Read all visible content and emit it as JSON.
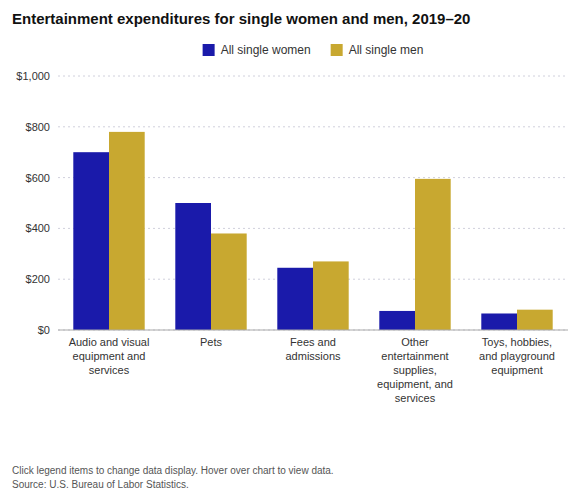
{
  "chart_data": {
    "type": "bar",
    "title": "Entertainment expenditures for single women and men, 2019–20",
    "categories": [
      "Audio and visual\nequipment and\nservices",
      "Pets",
      "Fees and\nadmissions",
      "Other\nentertainment\nsupplies,\nequipment, and\nservices",
      "Toys, hobbies,\nand playground\nequipment"
    ],
    "series": [
      {
        "name": "All single women",
        "color": "#1a1aaa",
        "values": [
          700,
          500,
          245,
          75,
          65
        ]
      },
      {
        "name": "All single men",
        "color": "#c8a830",
        "values": [
          780,
          380,
          270,
          595,
          80
        ]
      }
    ],
    "ylim": [
      0,
      1000
    ],
    "yticks": [
      {
        "value": 0,
        "label": "$0"
      },
      {
        "value": 200,
        "label": "$200"
      },
      {
        "value": 400,
        "label": "$400"
      },
      {
        "value": 600,
        "label": "$600"
      },
      {
        "value": 800,
        "label": "$800"
      },
      {
        "value": 1000,
        "label": "$1,000"
      }
    ],
    "grid": true,
    "legend": "top",
    "annotations": [
      "Click legend items to change data display. Hover over chart to view data.\nSource: U.S. Bureau of Labor Statistics."
    ]
  }
}
